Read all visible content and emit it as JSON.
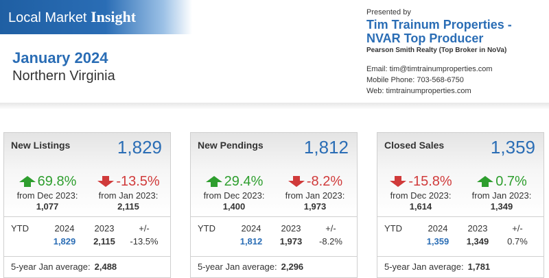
{
  "header": {
    "banner_part1": "Local Market ",
    "banner_part2": "Insight",
    "month": "January 2024",
    "region": "Northern Virginia"
  },
  "presenter": {
    "presented_by": "Presented by",
    "agent_line1": "Tim Trainum Properties -",
    "agent_line2": "NVAR Top Producer",
    "broker": "Pearson Smith Realty (Top Broker in NoVa)",
    "email": "Email: tim@timtrainumproperties.com",
    "phone": "Mobile Phone: 703-568-6750",
    "web": "Web: timtrainumproperties.com"
  },
  "colors": {
    "accent": "#2a6db5",
    "up": "#2e9e2e",
    "down": "#d03a3a"
  },
  "cards": [
    {
      "title": "New Listings",
      "value": "1,829",
      "left": {
        "direction": "up",
        "pct": "69.8%",
        "from": "from Dec 2023:",
        "from_value": "1,077"
      },
      "right": {
        "direction": "down",
        "pct": "-13.5%",
        "from": "from Jan 2023:",
        "from_value": "2,115"
      },
      "ytd": {
        "label": "YTD",
        "h1": "2024",
        "h2": "2023",
        "h3": "+/-",
        "v1": "1,829",
        "v2": "2,115",
        "v3": "-13.5%"
      },
      "avg_label": "5-year Jan average:",
      "avg_value": "2,488"
    },
    {
      "title": "New Pendings",
      "value": "1,812",
      "left": {
        "direction": "up",
        "pct": "29.4%",
        "from": "from Dec 2023:",
        "from_value": "1,400"
      },
      "right": {
        "direction": "down",
        "pct": "-8.2%",
        "from": "from Jan 2023:",
        "from_value": "1,973"
      },
      "ytd": {
        "label": "YTD",
        "h1": "2024",
        "h2": "2023",
        "h3": "+/-",
        "v1": "1,812",
        "v2": "1,973",
        "v3": "-8.2%"
      },
      "avg_label": "5-year Jan average:",
      "avg_value": "2,296"
    },
    {
      "title": "Closed Sales",
      "value": "1,359",
      "left": {
        "direction": "down",
        "pct": "-15.8%",
        "from": "from Dec 2023:",
        "from_value": "1,614"
      },
      "right": {
        "direction": "up",
        "pct": "0.7%",
        "from": "from Jan 2023:",
        "from_value": "1,349"
      },
      "ytd": {
        "label": "YTD",
        "h1": "2024",
        "h2": "2023",
        "h3": "+/-",
        "v1": "1,359",
        "v2": "1,349",
        "v3": "0.7%"
      },
      "avg_label": "5-year Jan average:",
      "avg_value": "1,781"
    }
  ]
}
